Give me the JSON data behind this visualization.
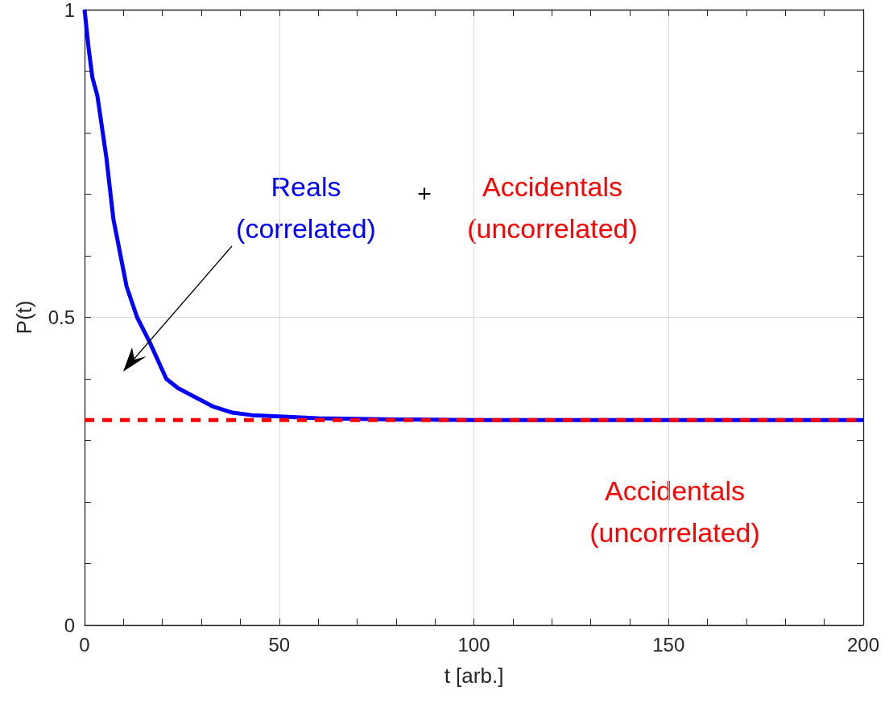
{
  "chart_data": {
    "type": "line",
    "xlabel": "t [arb.]",
    "ylabel": "P(t)",
    "series": [
      {
        "color": "#0000ff",
        "line_style": "solid",
        "x": [
          0,
          1,
          2,
          3.3,
          5.6,
          7.4,
          10.8,
          13.5,
          16.7,
          21,
          24,
          28.5,
          33,
          38,
          43,
          50,
          60,
          70,
          80,
          100,
          150,
          200
        ],
        "values": [
          1,
          0.94,
          0.89,
          0.86,
          0.76,
          0.66,
          0.55,
          0.5,
          0.46,
          0.4,
          0.385,
          0.37,
          0.355,
          0.345,
          0.341,
          0.339,
          0.336,
          0.335,
          0.334,
          0.333,
          0.333,
          0.333
        ]
      },
      {
        "color": "#ff0000",
        "line_style": "dashed",
        "x": [
          0,
          200
        ],
        "values": [
          0.333,
          0.333
        ]
      }
    ],
    "annotations": [
      "Reals\n(correlated)",
      "+",
      "Accidentals\n(uncorrelated)",
      "Accidentals\n(uncorrelated)"
    ],
    "xlim": [
      0,
      200
    ],
    "ylim": [
      0,
      1
    ],
    "xticks": [
      0,
      {
        "value": 10,
        "label": null
      },
      {
        "value": 20,
        "label": null
      },
      {
        "value": 30,
        "label": null
      },
      {
        "value": 40,
        "label": null
      },
      50,
      {
        "value": 60,
        "label": null
      },
      {
        "value": 70,
        "label": null
      },
      {
        "value": 80,
        "label": null
      },
      {
        "value": 90,
        "label": null
      },
      100,
      {
        "value": 110,
        "label": null
      },
      {
        "value": 120,
        "label": null
      },
      {
        "value": 130,
        "label": null
      },
      {
        "value": 140,
        "label": null
      },
      150,
      {
        "value": 160,
        "label": null
      },
      {
        "value": 170,
        "label": null
      },
      {
        "value": 180,
        "label": null
      },
      {
        "value": 190,
        "label": null
      },
      200
    ],
    "yticks": [
      0,
      {
        "value": 0.1,
        "label": null
      },
      {
        "value": 0.2,
        "label": null
      },
      {
        "value": 0.3,
        "label": null
      },
      {
        "value": 0.4,
        "label": null
      },
      0.5,
      {
        "value": 0.6,
        "label": null
      },
      {
        "value": 0.7,
        "label": null
      },
      {
        "value": 0.8,
        "label": null
      },
      {
        "value": 0.9,
        "label": null
      },
      1
    ],
    "grid": true,
    "marker": "none"
  }
}
